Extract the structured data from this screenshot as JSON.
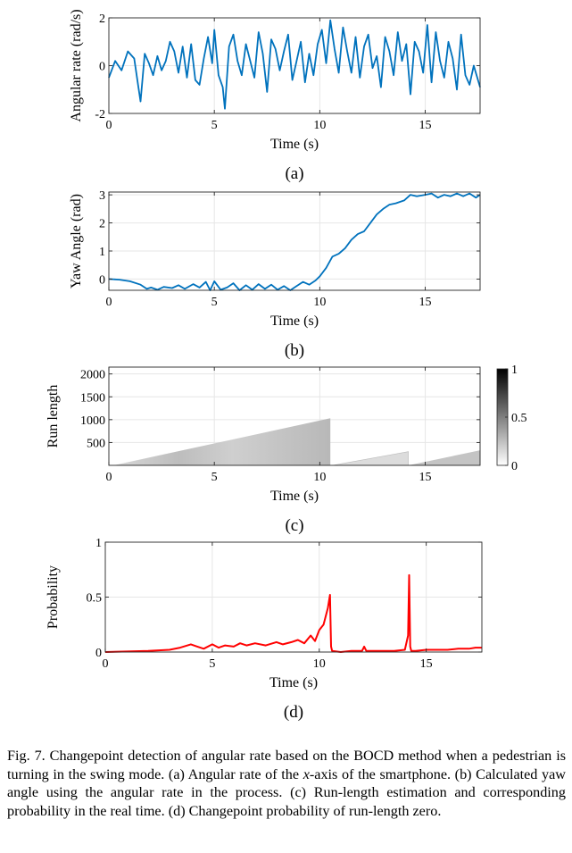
{
  "figure": {
    "panels": [
      {
        "id": "a",
        "sublabel": "(a)",
        "xlabel": "Time (s)",
        "ylabel": "Angular rate (rad/s)"
      },
      {
        "id": "b",
        "sublabel": "(b)",
        "xlabel": "Time (s)",
        "ylabel": "Yaw Angle (rad)"
      },
      {
        "id": "c",
        "sublabel": "(c)",
        "xlabel": "Time (s)",
        "ylabel": "Run length",
        "colorbar_ticks": [
          "1",
          "0.5",
          "0"
        ]
      },
      {
        "id": "d",
        "sublabel": "(d)",
        "xlabel": "Time (s)",
        "ylabel": "Probability"
      }
    ],
    "caption": {
      "p1": "Fig. 7.   Changepoint detection of angular rate based on the BOCD method when a pedestrian is turning in the swing mode. (a) Angular rate of the ",
      "x": "x",
      "p2": "-axis of the smartphone. (b) Calculated yaw angle using the angular rate in the process. (c) Run-length estimation and corresponding probability in the real time. (d) Changepoint probability of run-length zero."
    }
  },
  "chart_data": [
    {
      "type": "line",
      "panel": "a",
      "xlabel": "Time (s)",
      "ylabel": "Angular rate (rad/s)",
      "xlim": [
        0,
        17.6
      ],
      "ylim": [
        -2,
        2
      ],
      "xticks": [
        0,
        5,
        10,
        15
      ],
      "yticks": [
        -2,
        0,
        2
      ],
      "grid": true,
      "color": "#0072BD",
      "series": [
        {
          "x": [
            0,
            0.3,
            0.6,
            0.9,
            1.2,
            1.4,
            1.5,
            1.7,
            1.9,
            2.1,
            2.3,
            2.5,
            2.7,
            2.9,
            3.1,
            3.3,
            3.5,
            3.7,
            3.9,
            4.1,
            4.3,
            4.5,
            4.7,
            4.9,
            5.0,
            5.2,
            5.4,
            5.5,
            5.7,
            5.9,
            6.1,
            6.3,
            6.5,
            6.7,
            6.9,
            7.1,
            7.3,
            7.5,
            7.7,
            7.9,
            8.1,
            8.3,
            8.5,
            8.7,
            8.9,
            9.1,
            9.3,
            9.5,
            9.7,
            9.9,
            10.1,
            10.3,
            10.5,
            10.7,
            10.9,
            11.1,
            11.3,
            11.5,
            11.7,
            11.9,
            12.1,
            12.3,
            12.5,
            12.7,
            12.9,
            13.1,
            13.3,
            13.5,
            13.7,
            13.9,
            14.1,
            14.3,
            14.5,
            14.7,
            14.9,
            15.1,
            15.3,
            15.5,
            15.7,
            15.9,
            16.1,
            16.3,
            16.5,
            16.7,
            16.9,
            17.1,
            17.3,
            17.6
          ],
          "y": [
            -0.5,
            0.2,
            -0.2,
            0.6,
            0.3,
            -0.9,
            -1.5,
            0.5,
            0.1,
            -0.4,
            0.4,
            -0.2,
            0.2,
            1.0,
            0.6,
            -0.3,
            0.8,
            -0.5,
            0.9,
            -0.6,
            -0.8,
            0.3,
            1.2,
            0.1,
            1.5,
            -0.4,
            -0.9,
            -1.8,
            0.8,
            1.3,
            0.2,
            -0.4,
            0.9,
            0.2,
            -0.5,
            1.4,
            0.5,
            -1.1,
            1.1,
            0.7,
            -0.2,
            0.6,
            1.3,
            -0.6,
            0.2,
            1.0,
            -0.7,
            0.5,
            -0.4,
            0.9,
            1.5,
            0.1,
            1.9,
            0.7,
            -0.3,
            1.6,
            0.6,
            -0.3,
            1.2,
            -0.5,
            0.8,
            1.3,
            -0.1,
            0.4,
            -0.9,
            1.2,
            0.6,
            -0.4,
            1.4,
            0.2,
            0.9,
            -1.2,
            1.0,
            0.6,
            -0.3,
            1.7,
            -0.7,
            1.4,
            0.2,
            -0.5,
            1.0,
            0.3,
            -1.0,
            1.3,
            -0.4,
            -0.8,
            0.0,
            -0.9
          ]
        }
      ]
    },
    {
      "type": "line",
      "panel": "b",
      "xlabel": "Time (s)",
      "ylabel": "Yaw Angle (rad)",
      "xlim": [
        0,
        17.6
      ],
      "ylim": [
        -0.4,
        3.1
      ],
      "xticks": [
        0,
        5,
        10,
        15
      ],
      "yticks": [
        0,
        1,
        2,
        3
      ],
      "grid": true,
      "color": "#0072BD",
      "series": [
        {
          "x": [
            0,
            0.5,
            1.0,
            1.5,
            1.8,
            2.0,
            2.3,
            2.6,
            3.0,
            3.3,
            3.6,
            4.0,
            4.3,
            4.6,
            4.8,
            5.0,
            5.3,
            5.6,
            5.9,
            6.2,
            6.5,
            6.8,
            7.1,
            7.4,
            7.7,
            8.0,
            8.3,
            8.6,
            8.9,
            9.2,
            9.5,
            9.8,
            10.0,
            10.3,
            10.6,
            10.9,
            11.2,
            11.5,
            11.8,
            12.1,
            12.4,
            12.7,
            13.0,
            13.3,
            13.6,
            14.0,
            14.3,
            14.6,
            15.0,
            15.3,
            15.6,
            15.9,
            16.2,
            16.5,
            16.8,
            17.1,
            17.4,
            17.6
          ],
          "y": [
            0.0,
            -0.02,
            -0.08,
            -0.2,
            -0.35,
            -0.3,
            -0.38,
            -0.28,
            -0.32,
            -0.22,
            -0.35,
            -0.18,
            -0.3,
            -0.1,
            -0.4,
            -0.08,
            -0.38,
            -0.3,
            -0.15,
            -0.4,
            -0.22,
            -0.38,
            -0.18,
            -0.35,
            -0.2,
            -0.38,
            -0.25,
            -0.4,
            -0.25,
            -0.1,
            -0.2,
            -0.05,
            0.1,
            0.4,
            0.8,
            0.9,
            1.1,
            1.4,
            1.6,
            1.7,
            2.0,
            2.3,
            2.5,
            2.65,
            2.7,
            2.8,
            3.0,
            2.95,
            3.0,
            3.05,
            2.9,
            3.0,
            2.95,
            3.05,
            2.95,
            3.05,
            2.9,
            3.0
          ]
        }
      ]
    },
    {
      "type": "heatmap",
      "panel": "c",
      "xlabel": "Time (s)",
      "ylabel": "Run length",
      "xlim": [
        0,
        17.6
      ],
      "ylim": [
        0,
        2150
      ],
      "xticks": [
        0,
        5,
        10,
        15
      ],
      "yticks": [
        500,
        1000,
        1500,
        2000
      ],
      "grid": true,
      "colormap": "gray-reversed",
      "clim": [
        0,
        1
      ],
      "segments": [
        {
          "t_start": 0.2,
          "t_end": 10.5,
          "max_run_length": 1030
        },
        {
          "t_start": 10.6,
          "t_end": 14.2,
          "max_run_length": 300
        },
        {
          "t_start": 14.2,
          "t_end": 17.6,
          "max_run_length": 330
        }
      ]
    },
    {
      "type": "line",
      "panel": "d",
      "xlabel": "Time (s)",
      "ylabel": "Probability",
      "xlim": [
        0,
        17.6
      ],
      "ylim": [
        0,
        1
      ],
      "xticks": [
        0,
        5,
        10,
        15
      ],
      "yticks": [
        0,
        0.5,
        1
      ],
      "grid": true,
      "color": "#FF0000",
      "series": [
        {
          "x": [
            0,
            1.0,
            2.0,
            3.0,
            3.5,
            4.0,
            4.3,
            4.6,
            5.0,
            5.3,
            5.6,
            6.0,
            6.3,
            6.6,
            7.0,
            7.5,
            8.0,
            8.3,
            8.7,
            9.0,
            9.3,
            9.6,
            9.8,
            10.0,
            10.2,
            10.4,
            10.5,
            10.55,
            10.6,
            11.0,
            11.5,
            12.0,
            12.1,
            12.2,
            12.5,
            13.0,
            13.5,
            14.0,
            14.15,
            14.2,
            14.25,
            14.3,
            14.5,
            15.0,
            15.5,
            16.0,
            16.5,
            17.0,
            17.3,
            17.6
          ],
          "y": [
            0.0,
            0.005,
            0.01,
            0.02,
            0.04,
            0.07,
            0.05,
            0.03,
            0.07,
            0.04,
            0.06,
            0.05,
            0.08,
            0.06,
            0.08,
            0.06,
            0.09,
            0.07,
            0.09,
            0.11,
            0.08,
            0.15,
            0.1,
            0.2,
            0.25,
            0.4,
            0.52,
            0.05,
            0.01,
            0.0,
            0.01,
            0.01,
            0.05,
            0.01,
            0.01,
            0.01,
            0.01,
            0.02,
            0.15,
            0.7,
            0.05,
            0.01,
            0.01,
            0.02,
            0.02,
            0.02,
            0.03,
            0.03,
            0.04,
            0.04
          ]
        }
      ]
    }
  ]
}
